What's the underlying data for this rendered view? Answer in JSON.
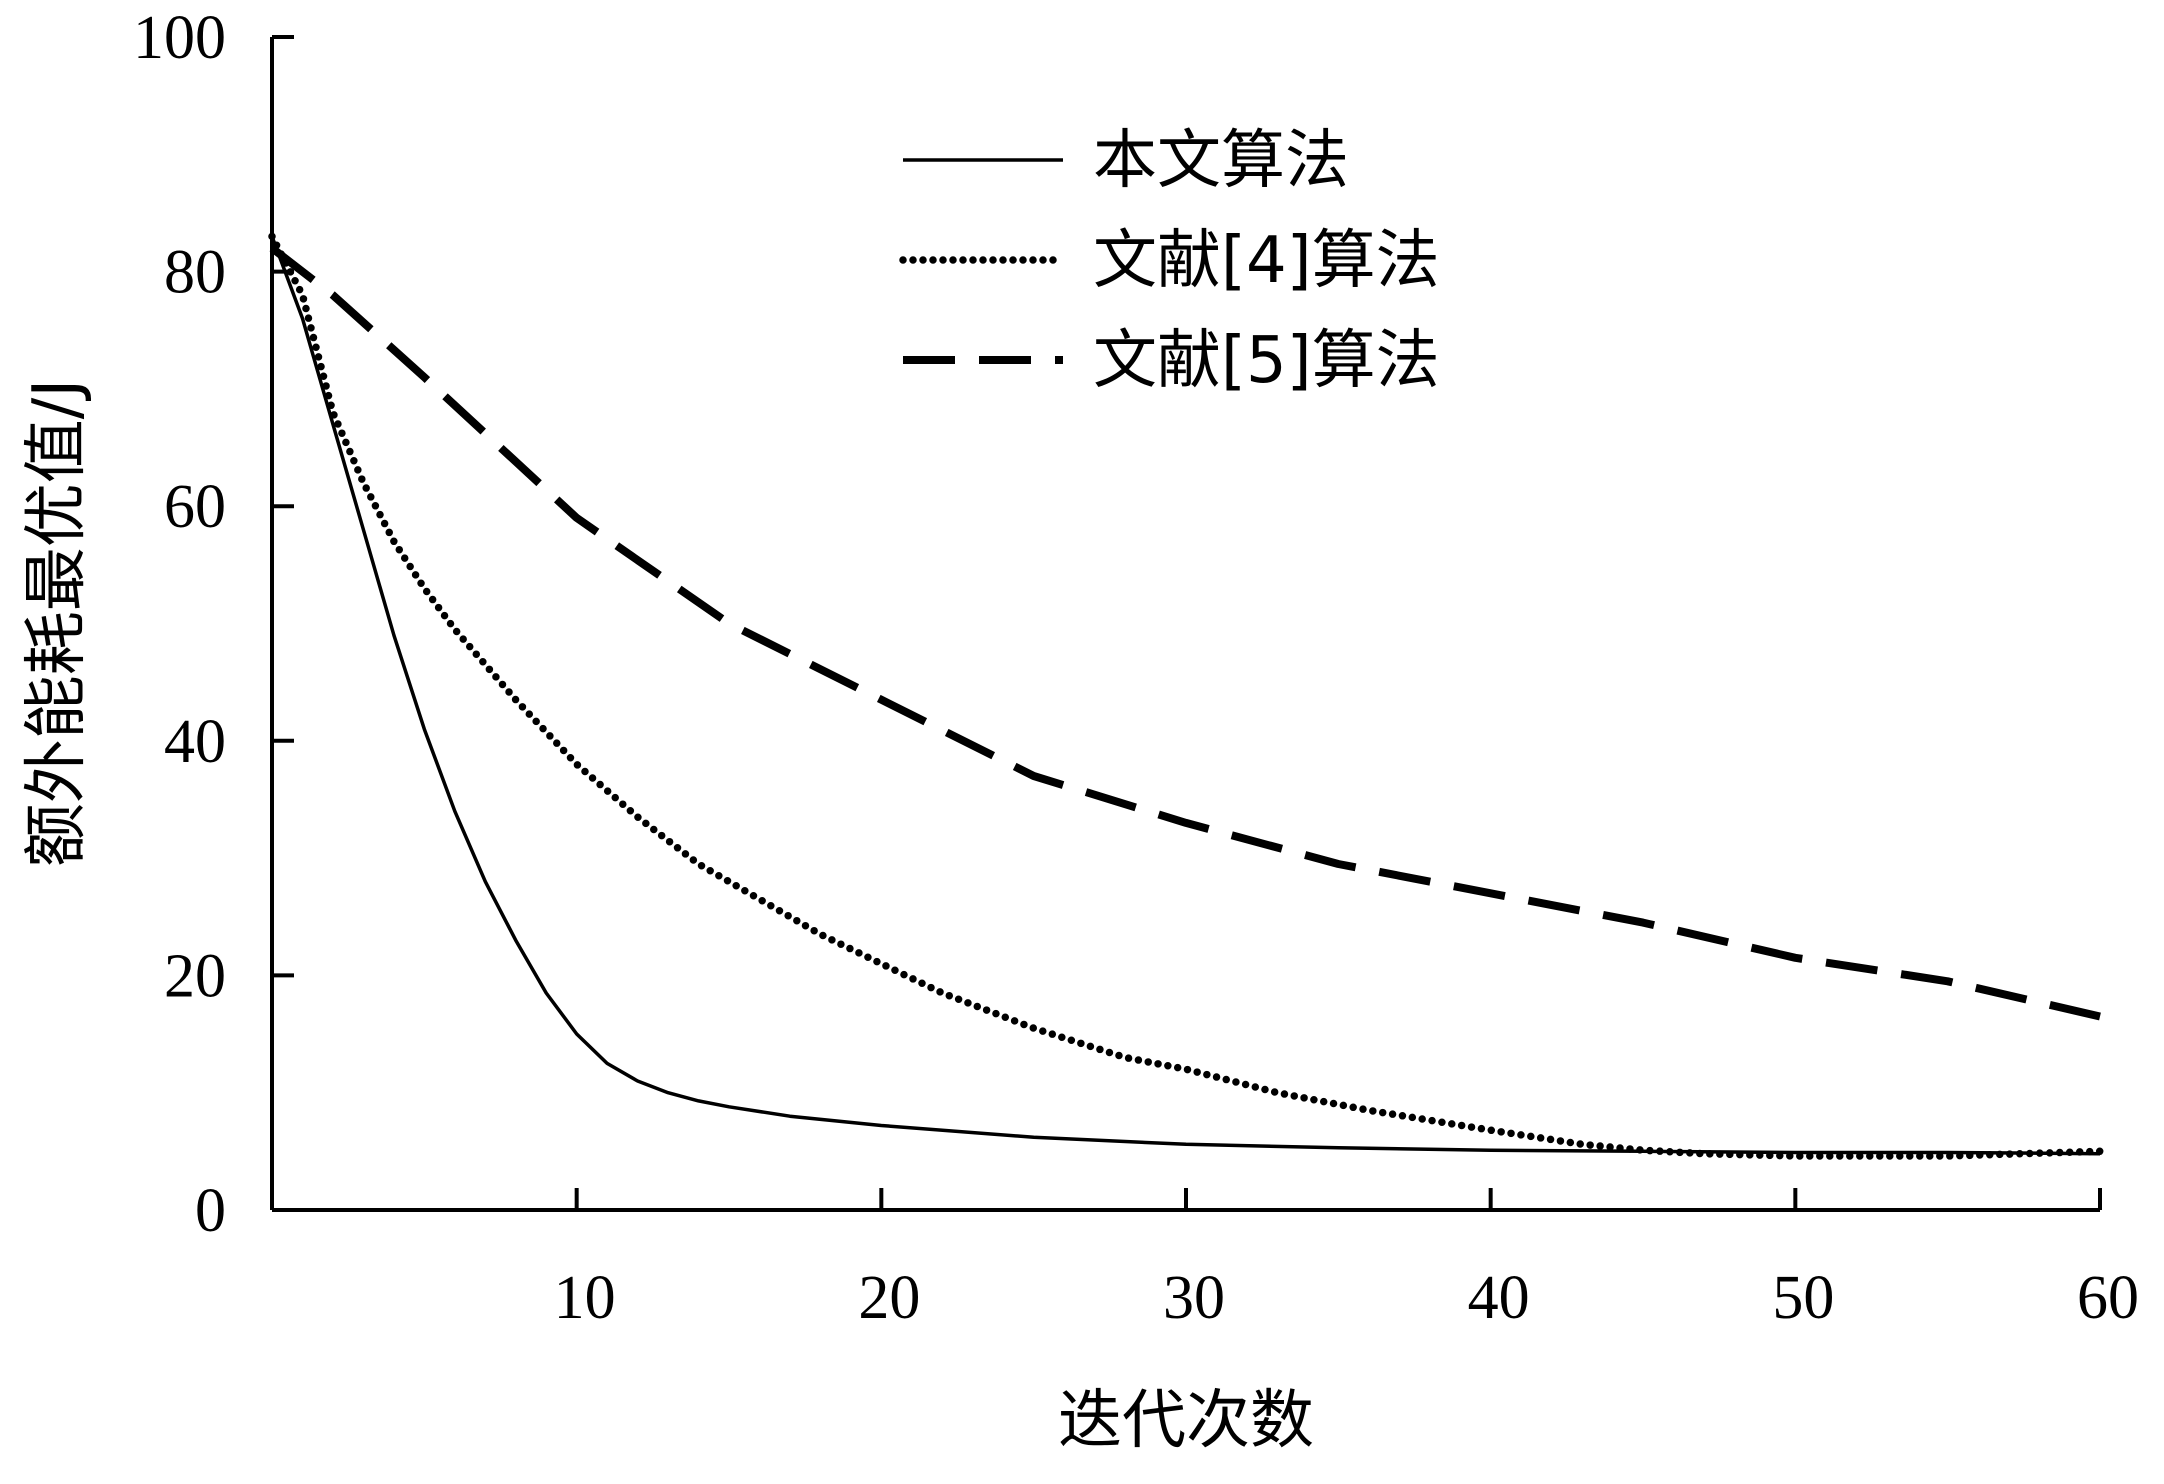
{
  "chart_data": {
    "type": "line",
    "title": "",
    "xlabel": "迭代次数",
    "ylabel": "额外能耗最优值/J",
    "xlim": [
      0,
      60
    ],
    "ylim": [
      0,
      100
    ],
    "xticks": [
      10,
      20,
      30,
      40,
      50,
      60
    ],
    "yticks": [
      0,
      20,
      40,
      60,
      80,
      100
    ],
    "grid": false,
    "legend_position": "top-center",
    "series": [
      {
        "name": "本文算法",
        "style": "solid",
        "color": "#000000",
        "x": [
          0,
          1,
          2,
          3,
          4,
          5,
          6,
          7,
          8,
          9,
          10,
          11,
          12,
          13,
          14,
          15,
          17,
          20,
          25,
          30,
          35,
          40,
          45,
          50,
          55,
          60
        ],
        "y": [
          83,
          76,
          67,
          58,
          49,
          41,
          34,
          28,
          23,
          18.5,
          15,
          12.5,
          11,
          10,
          9.3,
          8.8,
          8,
          7.2,
          6.2,
          5.6,
          5.3,
          5.1,
          5,
          4.9,
          4.9,
          4.8
        ]
      },
      {
        "name": "文献[4]算法",
        "style": "dotted",
        "color": "#000000",
        "x": [
          0,
          1,
          2,
          3,
          4,
          5,
          6,
          8,
          10,
          12,
          14,
          16,
          18,
          20,
          22,
          25,
          28,
          30,
          33,
          36,
          40,
          43,
          45,
          47,
          50,
          55,
          60
        ],
        "y": [
          83,
          78,
          68,
          62,
          57,
          53,
          49.5,
          43.5,
          38,
          33.5,
          29.5,
          26.5,
          23.5,
          21,
          18.5,
          15.5,
          13,
          12,
          10,
          8.5,
          6.8,
          5.6,
          5.1,
          4.8,
          4.6,
          4.6,
          5
        ]
      },
      {
        "name": "文献[5]算法",
        "style": "dashed",
        "color": "#000000",
        "x": [
          0,
          2,
          5,
          10,
          15,
          20,
          25,
          30,
          35,
          40,
          45,
          50,
          55,
          60
        ],
        "y": [
          82,
          78,
          71,
          59,
          50,
          43.5,
          37,
          33,
          29.5,
          27,
          24.5,
          21.5,
          19.5,
          16.5
        ]
      }
    ]
  }
}
